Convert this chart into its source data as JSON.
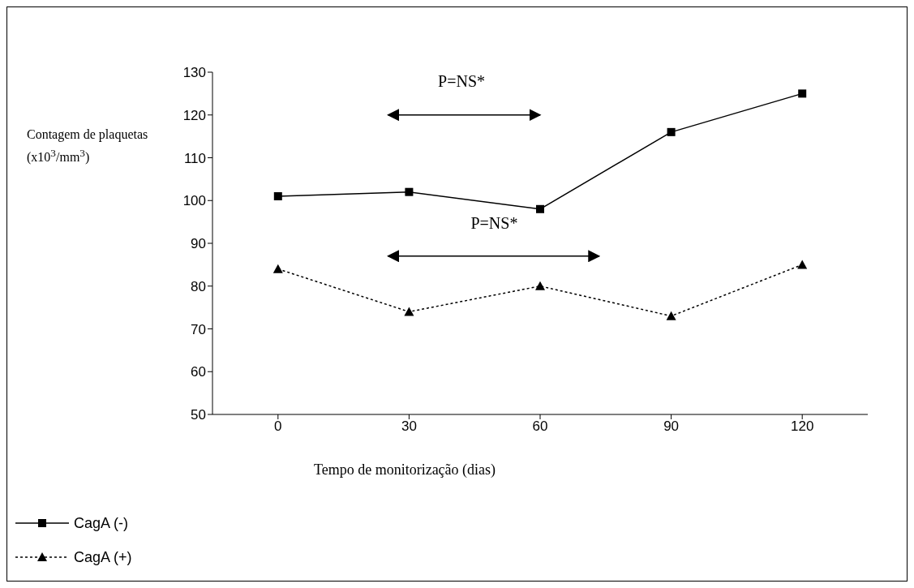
{
  "chart_data": {
    "type": "line",
    "xlabel": "Tempo de monitorização (dias)",
    "ylabel": "Contagem de plaquetas (x10$^{3}$/mm$^{3}$)",
    "categories": [
      "0",
      "30",
      "60",
      "90",
      "120"
    ],
    "series": [
      {
        "name": "CagA (-)",
        "color": "#000000",
        "values": [
          101,
          102,
          98,
          116,
          125
        ],
        "marker": "square",
        "line_style": "solid"
      },
      {
        "name": "CagA (+)",
        "color": "#000000",
        "values": [
          84,
          74,
          80,
          73,
          85
        ],
        "marker": "triangle",
        "line_style": "dotted"
      }
    ],
    "ylim": [
      50,
      130
    ],
    "yticks": [
      50,
      60,
      70,
      80,
      90,
      100,
      110,
      120,
      130
    ],
    "legend": "bottom left",
    "annotations": [
      "P=NS*",
      "P=NS*"
    ]
  }
}
